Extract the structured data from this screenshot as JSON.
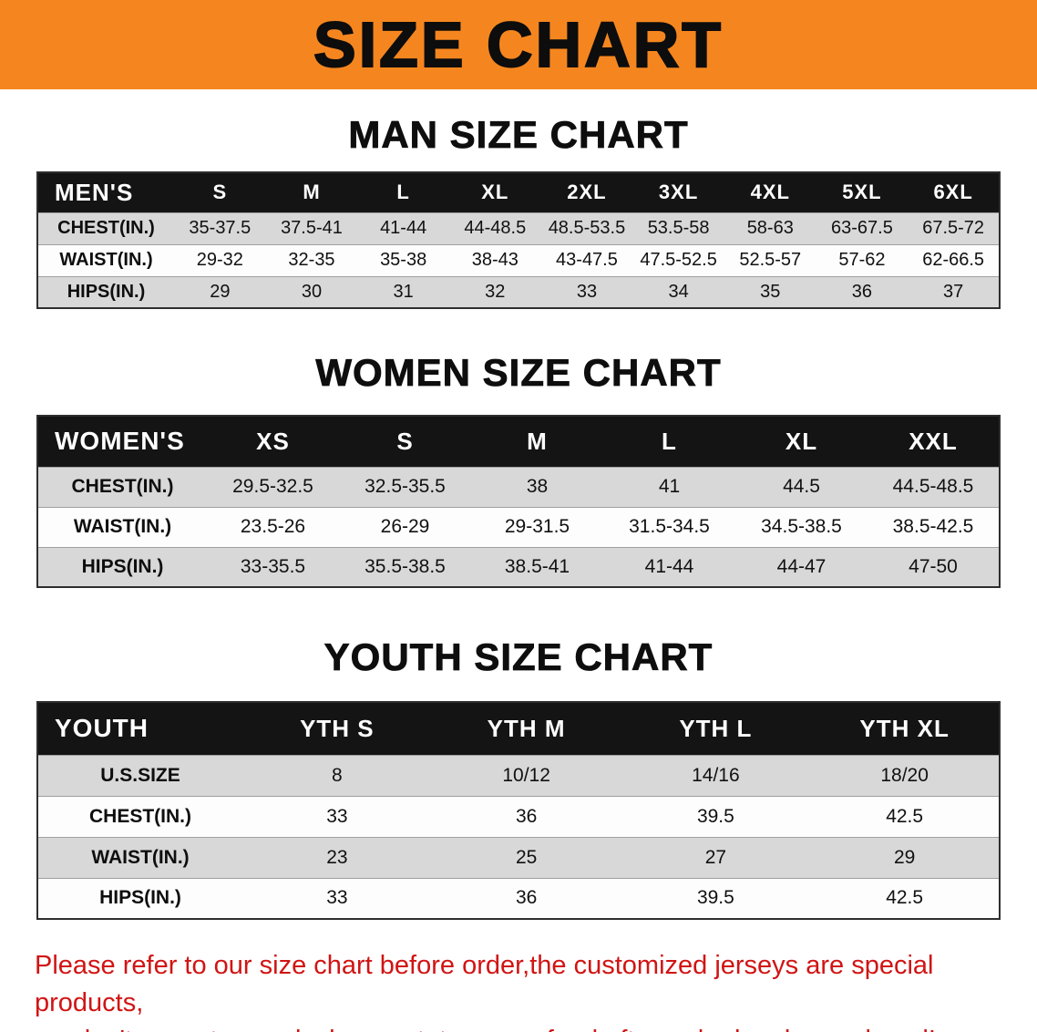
{
  "banner": {
    "title": "SIZE CHART"
  },
  "colors": {
    "banner_bg": "#f5861f",
    "table_header_bg": "#141414",
    "table_header_text": "#ffffff",
    "row_alt_bg": "#d8d8d8",
    "disclaimer_red": "#d11414"
  },
  "sections": [
    {
      "id": "men",
      "heading": "MAN SIZE CHART",
      "table": {
        "header": [
          "MEN'S",
          "S",
          "M",
          "L",
          "XL",
          "2XL",
          "3XL",
          "4XL",
          "5XL",
          "6XL"
        ],
        "rows": [
          {
            "label": "CHEST(IN.)",
            "values": [
              "35-37.5",
              "37.5-41",
              "41-44",
              "44-48.5",
              "48.5-53.5",
              "53.5-58",
              "58-63",
              "63-67.5",
              "67.5-72"
            ]
          },
          {
            "label": "WAIST(IN.)",
            "values": [
              "29-32",
              "32-35",
              "35-38",
              "38-43",
              "43-47.5",
              "47.5-52.5",
              "52.5-57",
              "57-62",
              "62-66.5"
            ]
          },
          {
            "label": "HIPS(IN.)",
            "values": [
              "29",
              "30",
              "31",
              "32",
              "33",
              "34",
              "35",
              "36",
              "37"
            ]
          }
        ]
      }
    },
    {
      "id": "women",
      "heading": "WOMEN SIZE CHART",
      "table": {
        "header": [
          "WOMEN'S",
          "XS",
          "S",
          "M",
          "L",
          "XL",
          "XXL"
        ],
        "rows": [
          {
            "label": "CHEST(IN.)",
            "values": [
              "29.5-32.5",
              "32.5-35.5",
              "38",
              "41",
              "44.5",
              "44.5-48.5"
            ]
          },
          {
            "label": "WAIST(IN.)",
            "values": [
              "23.5-26",
              "26-29",
              "29-31.5",
              "31.5-34.5",
              "34.5-38.5",
              "38.5-42.5"
            ]
          },
          {
            "label": "HIPS(IN.)",
            "values": [
              "33-35.5",
              "35.5-38.5",
              "38.5-41",
              "41-44",
              "44-47",
              "47-50"
            ]
          }
        ]
      }
    },
    {
      "id": "youth",
      "heading": "YOUTH SIZE CHART",
      "table": {
        "header": [
          "YOUTH",
          "YTH S",
          "YTH M",
          "YTH L",
          "YTH XL"
        ],
        "rows": [
          {
            "label": "U.S.SIZE",
            "values": [
              "8",
              "10/12",
              "14/16",
              "18/20"
            ]
          },
          {
            "label": "CHEST(IN.)",
            "values": [
              "33",
              "36",
              "39.5",
              "42.5"
            ]
          },
          {
            "label": "WAIST(IN.)",
            "values": [
              "23",
              "25",
              "27",
              "29"
            ]
          },
          {
            "label": "HIPS(IN.)",
            "values": [
              "33",
              "36",
              "39.5",
              "42.5"
            ]
          }
        ]
      }
    }
  ],
  "disclaimer": {
    "line1": "Please refer to our size chart before order,the customized jerseys are special products,",
    "line2": "we don't accept cancel, change, teturn or refund after order has been placed!"
  }
}
